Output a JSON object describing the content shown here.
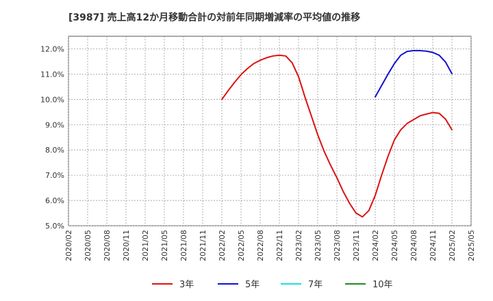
{
  "chart_data": {
    "type": "line",
    "title": "[3987]  売上高12か月移動合計の対前年同期増減率の平均値の推移",
    "xlabel": "",
    "ylabel": "",
    "ylim": [
      5.0,
      12.5
    ],
    "yticks": [
      5.0,
      6.0,
      7.0,
      8.0,
      9.0,
      10.0,
      11.0,
      12.0
    ],
    "ytick_labels": [
      "5.0%",
      "6.0%",
      "7.0%",
      "8.0%",
      "9.0%",
      "10.0%",
      "11.0%",
      "12.0%"
    ],
    "xtick_labels": [
      "2020/02",
      "2020/05",
      "2020/08",
      "2020/11",
      "2021/02",
      "2021/05",
      "2021/08",
      "2021/11",
      "2022/02",
      "2022/05",
      "2022/08",
      "2022/11",
      "2023/02",
      "2023/05",
      "2023/08",
      "2023/11",
      "2024/02",
      "2024/05",
      "2024/08",
      "2024/11",
      "2025/02",
      "2025/05"
    ],
    "x_start": "2020/02",
    "grid": true,
    "legend_position": "bottom",
    "series": [
      {
        "name": "3年",
        "color": "#dd1111",
        "start": "2022/02",
        "values": [
          10.0,
          10.35,
          10.68,
          10.98,
          11.22,
          11.42,
          11.55,
          11.65,
          11.72,
          11.75,
          11.72,
          11.45,
          10.9,
          10.1,
          9.35,
          8.6,
          7.95,
          7.4,
          6.9,
          6.35,
          5.88,
          5.5,
          5.35,
          5.6,
          6.2,
          7.0,
          7.75,
          8.4,
          8.8,
          9.05,
          9.2,
          9.35,
          9.42,
          9.48,
          9.45,
          9.22,
          8.8
        ]
      },
      {
        "name": "5年",
        "color": "#1111cc",
        "start": "2024/02",
        "values": [
          10.1,
          10.55,
          11.0,
          11.42,
          11.75,
          11.9,
          11.93,
          11.93,
          11.91,
          11.86,
          11.75,
          11.48,
          11.02
        ]
      },
      {
        "name": "7年",
        "color": "#22dddd",
        "start": "2020/02",
        "values": []
      },
      {
        "name": "10年",
        "color": "#228822",
        "start": "2020/02",
        "values": []
      }
    ]
  }
}
